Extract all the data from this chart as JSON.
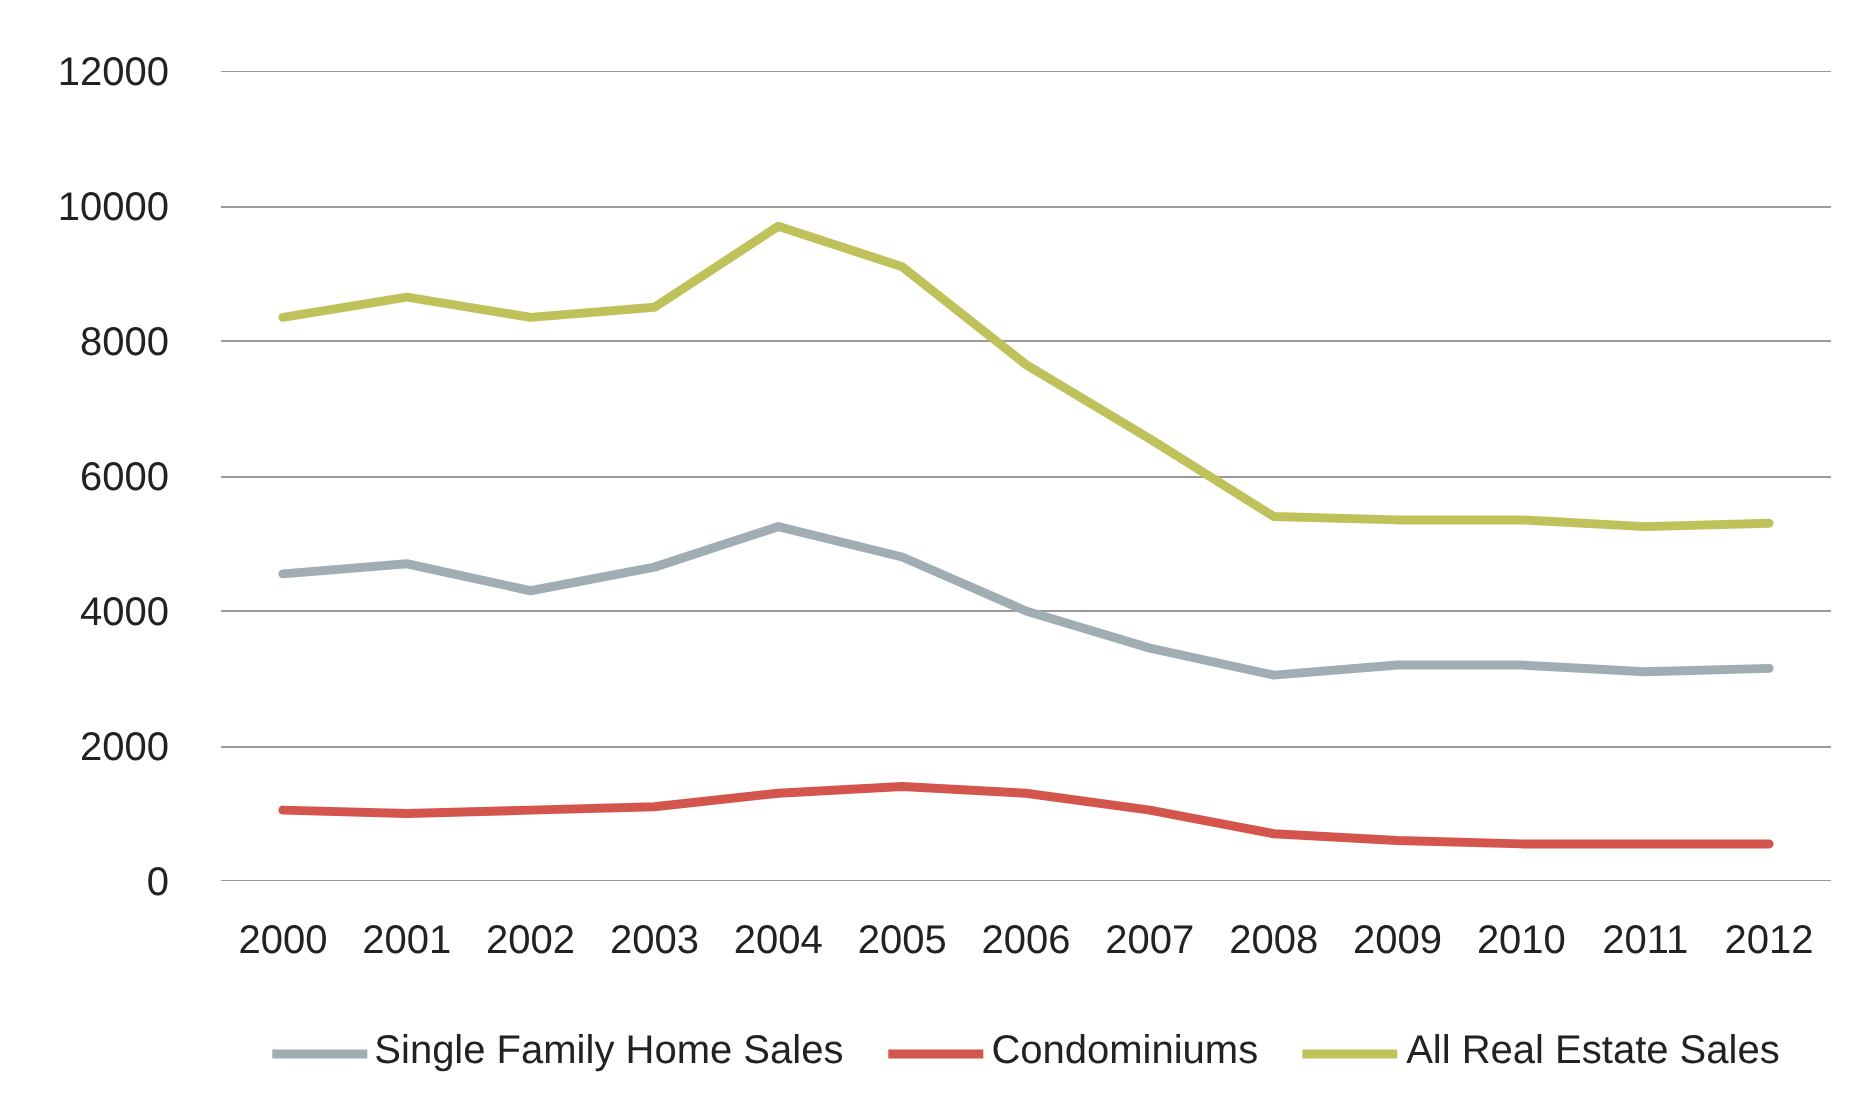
{
  "chart_data": {
    "type": "line",
    "categories": [
      "2000",
      "2001",
      "2002",
      "2003",
      "2004",
      "2005",
      "2006",
      "2007",
      "2008",
      "2009",
      "2010",
      "2011",
      "2012"
    ],
    "series": [
      {
        "name": "Single Family Home Sales",
        "color": "#a0adb2",
        "values": [
          4550,
          4700,
          4300,
          4650,
          5250,
          4800,
          4000,
          3450,
          3050,
          3200,
          3200,
          3100,
          3150
        ]
      },
      {
        "name": "Condominiums",
        "color": "#d4554b",
        "values": [
          1050,
          1000,
          1050,
          1100,
          1300,
          1400,
          1300,
          1050,
          700,
          600,
          550,
          550,
          550
        ]
      },
      {
        "name": "All Real Estate Sales",
        "color": "#bfc25a",
        "values": [
          8350,
          8650,
          8350,
          8500,
          9700,
          9100,
          7650,
          6550,
          5400,
          5350,
          5350,
          5250,
          5300
        ]
      }
    ],
    "ylim": [
      0,
      12000
    ],
    "yticks": [
      0,
      2000,
      4000,
      6000,
      8000,
      10000,
      12000
    ],
    "grid": "y",
    "legend": "bottom"
  }
}
